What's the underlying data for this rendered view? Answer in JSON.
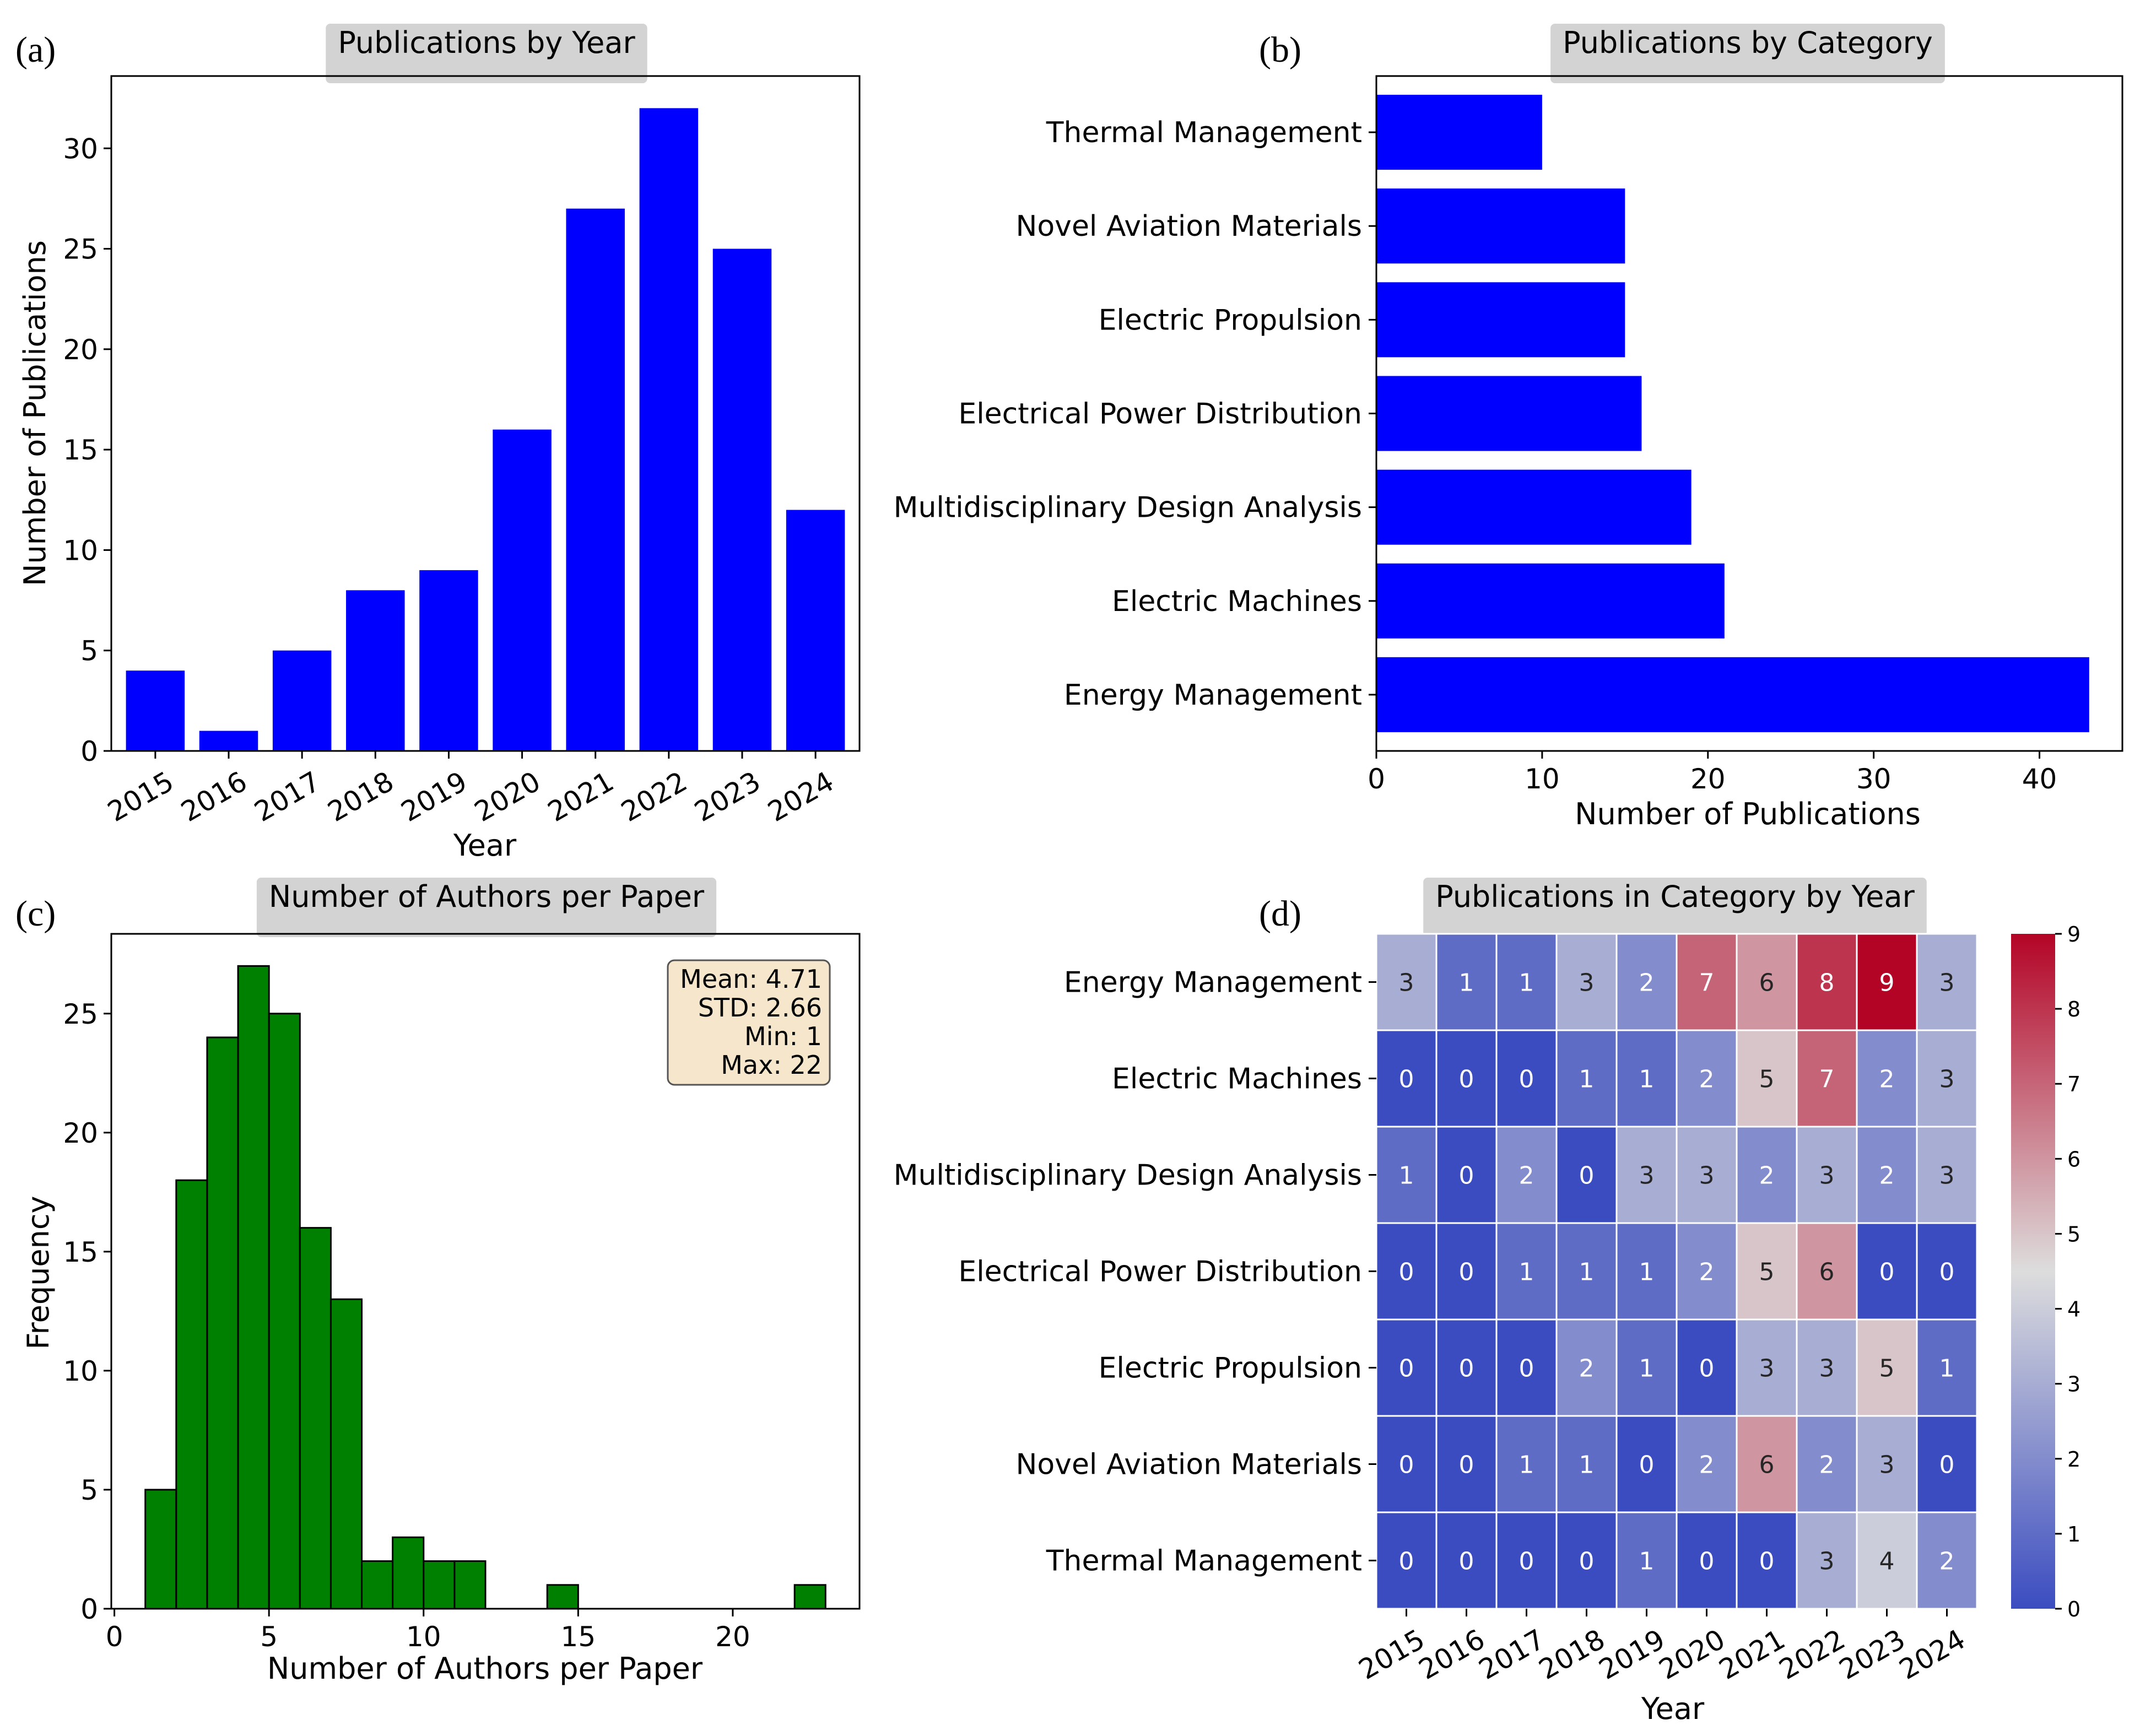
{
  "panel_labels": [
    "(a)",
    "(b)",
    "(c)",
    "(d)"
  ],
  "colors": {
    "bar_blue": "#0000ff",
    "hist_green": "#008000",
    "title_box": "#d3d3d3",
    "stats_box": "#f5e6cc",
    "heat_low": "#3b4cc0",
    "heat_mid": "#dddddd",
    "heat_high": "#b40426"
  },
  "chart_data": [
    {
      "id": "a",
      "type": "bar",
      "title": "Publications by Year",
      "xlabel": "Year",
      "ylabel": "Number of Publications",
      "categories": [
        "2015",
        "2016",
        "2017",
        "2018",
        "2019",
        "2020",
        "2021",
        "2022",
        "2023",
        "2024"
      ],
      "values": [
        4,
        1,
        5,
        8,
        9,
        16,
        27,
        32,
        25,
        12
      ],
      "ylim": [
        0,
        33.6
      ],
      "yticks": [
        0,
        5,
        10,
        15,
        20,
        25,
        30
      ]
    },
    {
      "id": "b",
      "type": "bar",
      "orientation": "horizontal",
      "title": "Publications by Category",
      "xlabel": "Number of Publications",
      "categories": [
        "Energy Management",
        "Electric Machines",
        "Multidisciplinary Design Analysis",
        "Electrical Power Distribution",
        "Electric Propulsion",
        "Novel Aviation Materials",
        "Thermal Management"
      ],
      "values": [
        43,
        21,
        19,
        16,
        15,
        15,
        10
      ],
      "xlim": [
        0,
        45
      ],
      "xticks": [
        0,
        10,
        20,
        30,
        40
      ]
    },
    {
      "id": "c",
      "type": "bar",
      "subtype": "histogram",
      "title": "Number of Authors per Paper",
      "xlabel": "Number of Authors per Paper",
      "ylabel": "Frequency",
      "bins": [
        {
          "x0": 1,
          "x1": 2,
          "count": 5
        },
        {
          "x0": 2,
          "x1": 3,
          "count": 18
        },
        {
          "x0": 3,
          "x1": 4,
          "count": 24
        },
        {
          "x0": 4,
          "x1": 5,
          "count": 27
        },
        {
          "x0": 5,
          "x1": 6,
          "count": 25
        },
        {
          "x0": 6,
          "x1": 7,
          "count": 16
        },
        {
          "x0": 7,
          "x1": 8,
          "count": 13
        },
        {
          "x0": 8,
          "x1": 9,
          "count": 2
        },
        {
          "x0": 9,
          "x1": 10,
          "count": 3
        },
        {
          "x0": 10,
          "x1": 11,
          "count": 2
        },
        {
          "x0": 11,
          "x1": 12,
          "count": 2
        },
        {
          "x0": 14,
          "x1": 15,
          "count": 1
        },
        {
          "x0": 22,
          "x1": 23,
          "count": 1
        }
      ],
      "xlim": [
        -0.1,
        24.1
      ],
      "ylim": [
        0,
        28.35
      ],
      "xticks": [
        0,
        5,
        10,
        15,
        20
      ],
      "yticks": [
        0,
        5,
        10,
        15,
        20,
        25
      ],
      "stats": [
        "Mean: 4.71",
        "STD: 2.66",
        "Min: 1",
        "Max: 22"
      ]
    },
    {
      "id": "d",
      "type": "heatmap",
      "title": "Publications in Category by Year",
      "xlabel": "Year",
      "x": [
        "2015",
        "2016",
        "2017",
        "2018",
        "2019",
        "2020",
        "2021",
        "2022",
        "2023",
        "2024"
      ],
      "y": [
        "Energy Management",
        "Electric Machines",
        "Multidisciplinary Design Analysis",
        "Electrical Power Distribution",
        "Electric Propulsion",
        "Novel Aviation Materials",
        "Thermal Management"
      ],
      "z": [
        [
          3,
          1,
          1,
          3,
          2,
          7,
          6,
          8,
          9,
          3
        ],
        [
          0,
          0,
          0,
          1,
          1,
          2,
          5,
          7,
          2,
          3
        ],
        [
          1,
          0,
          2,
          0,
          3,
          3,
          2,
          3,
          2,
          3
        ],
        [
          0,
          0,
          1,
          1,
          1,
          2,
          5,
          6,
          0,
          0
        ],
        [
          0,
          0,
          0,
          2,
          1,
          0,
          3,
          3,
          5,
          1
        ],
        [
          0,
          0,
          1,
          1,
          0,
          2,
          6,
          2,
          3,
          0
        ],
        [
          0,
          0,
          0,
          0,
          1,
          0,
          0,
          3,
          4,
          2
        ]
      ],
      "zlim": [
        0,
        9
      ],
      "colorbar_ticks": [
        0,
        1,
        2,
        3,
        4,
        5,
        6,
        7,
        8,
        9
      ]
    }
  ]
}
